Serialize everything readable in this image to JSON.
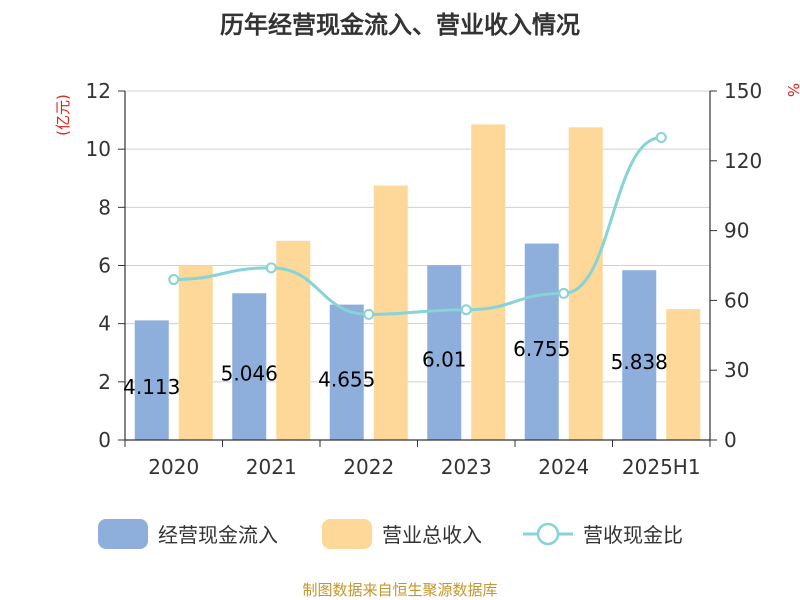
{
  "chart_data": {
    "type": "bar",
    "title": "历年经营现金流入、营业收入情况",
    "categories": [
      "2020",
      "2021",
      "2022",
      "2023",
      "2024",
      "2025H1"
    ],
    "series": [
      {
        "name": "经营现金流入",
        "kind": "bar",
        "axis": "left",
        "color": "#8eaedb",
        "values": [
          4.113,
          5.046,
          4.655,
          6.01,
          6.755,
          5.838
        ],
        "labels": [
          "4.113",
          "5.046",
          "4.655",
          "6.01",
          "6.755",
          "5.838"
        ]
      },
      {
        "name": "营业总收入",
        "kind": "bar",
        "axis": "left",
        "color": "#fdd898",
        "values": [
          6.0,
          6.85,
          8.75,
          10.85,
          10.75,
          4.5
        ]
      },
      {
        "name": "营收现金比",
        "kind": "line",
        "axis": "right",
        "color": "#86d3d8",
        "values": [
          69,
          74,
          54,
          56,
          63,
          130
        ]
      }
    ],
    "y_left": {
      "unit": "(亿元)",
      "min": 0,
      "max": 12,
      "ticks": [
        0,
        2,
        4,
        6,
        8,
        10,
        12
      ]
    },
    "y_right": {
      "unit": "%",
      "min": 0,
      "max": 150,
      "ticks": [
        0,
        30,
        60,
        90,
        120,
        150
      ]
    },
    "grid": true,
    "legend": "bottom"
  },
  "source_note": "制图数据来自恒生聚源数据库"
}
